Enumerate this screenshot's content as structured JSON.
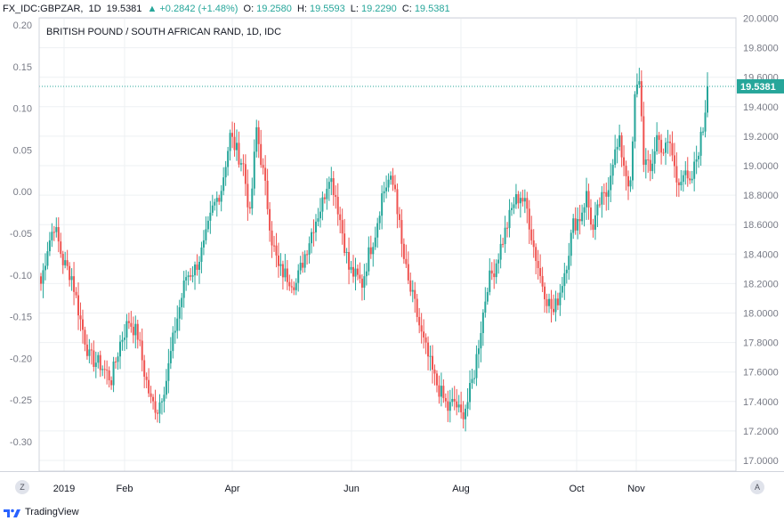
{
  "header": {
    "symbol": "FX_IDC:GBPZAR,",
    "interval": "1D",
    "last": "19.5381",
    "change_icon": "triangle-up-icon",
    "change": "+0.2842 (+1.48%)",
    "open_label": "O:",
    "open": "19.2580",
    "high_label": "H:",
    "high": "19.5593",
    "low_label": "L:",
    "low": "19.2290",
    "close_label": "C:",
    "close": "19.5381"
  },
  "colors": {
    "up": "#26a69a",
    "down": "#ef5350",
    "grid": "#eef0f3",
    "axis": "#787b86",
    "price_line": "#26a69a"
  },
  "footer": {
    "brand": "TradingView",
    "brand_icon": "tradingview-logo-icon",
    "left_button": "Z",
    "right_button": "A"
  },
  "chart_data": {
    "type": "candlestick",
    "title": "BRITISH POUND / SOUTH AFRICAN RAND, 1D, IDC",
    "x_tick_labels": [
      "2019",
      "Feb",
      "Apr",
      "Jun",
      "Aug",
      "Oct",
      "Nov"
    ],
    "left_axis": {
      "ticks": [
        "0.20",
        "0.15",
        "0.10",
        "0.05",
        "0.00",
        "-0.05",
        "-0.10",
        "-0.15",
        "-0.20",
        "-0.25",
        "-0.30"
      ]
    },
    "right_axis": {
      "ticks": [
        "20.0000",
        "19.8000",
        "19.6000",
        "19.4000",
        "19.2000",
        "19.0000",
        "18.8000",
        "18.6000",
        "18.4000",
        "18.2000",
        "18.0000",
        "17.8000",
        "17.6000",
        "17.4000",
        "17.2000",
        "17.0000"
      ],
      "ylim": [
        17.0,
        20.0
      ]
    },
    "last_price": 19.5381,
    "last_price_label": "19.5381",
    "grid": true,
    "anchors": [
      [
        0,
        18.2
      ],
      [
        3,
        18.45
      ],
      [
        6,
        18.6
      ],
      [
        10,
        18.35
      ],
      [
        14,
        18.25
      ],
      [
        18,
        17.95
      ],
      [
        22,
        17.7
      ],
      [
        27,
        17.65
      ],
      [
        32,
        17.55
      ],
      [
        36,
        17.8
      ],
      [
        40,
        17.95
      ],
      [
        44,
        17.85
      ],
      [
        47,
        17.6
      ],
      [
        50,
        17.4
      ],
      [
        53,
        17.35
      ],
      [
        57,
        17.55
      ],
      [
        61,
        17.9
      ],
      [
        66,
        18.25
      ],
      [
        70,
        18.3
      ],
      [
        74,
        18.45
      ],
      [
        78,
        18.7
      ],
      [
        82,
        18.85
      ],
      [
        86,
        19.2
      ],
      [
        89,
        19.1
      ],
      [
        92,
        19.0
      ],
      [
        95,
        18.65
      ],
      [
        98,
        19.25
      ],
      [
        102,
        18.85
      ],
      [
        105,
        18.5
      ],
      [
        108,
        18.3
      ],
      [
        112,
        18.25
      ],
      [
        116,
        18.2
      ],
      [
        120,
        18.4
      ],
      [
        124,
        18.6
      ],
      [
        128,
        18.75
      ],
      [
        131,
        18.95
      ],
      [
        134,
        18.8
      ],
      [
        137,
        18.55
      ],
      [
        140,
        18.3
      ],
      [
        143,
        18.25
      ],
      [
        146,
        18.2
      ],
      [
        149,
        18.4
      ],
      [
        152,
        18.55
      ],
      [
        155,
        18.8
      ],
      [
        158,
        18.9
      ],
      [
        161,
        18.85
      ],
      [
        164,
        18.45
      ],
      [
        167,
        18.2
      ],
      [
        170,
        18.05
      ],
      [
        173,
        17.85
      ],
      [
        176,
        17.7
      ],
      [
        179,
        17.55
      ],
      [
        182,
        17.45
      ],
      [
        185,
        17.35
      ],
      [
        188,
        17.4
      ],
      [
        191,
        17.3
      ],
      [
        194,
        17.4
      ],
      [
        197,
        17.6
      ],
      [
        200,
        17.9
      ],
      [
        203,
        18.2
      ],
      [
        206,
        18.3
      ],
      [
        209,
        18.45
      ],
      [
        212,
        18.6
      ],
      [
        215,
        18.75
      ],
      [
        218,
        18.8
      ],
      [
        221,
        18.7
      ],
      [
        224,
        18.45
      ],
      [
        227,
        18.25
      ],
      [
        230,
        18.1
      ],
      [
        233,
        18.0
      ],
      [
        236,
        18.15
      ],
      [
        239,
        18.35
      ],
      [
        242,
        18.6
      ],
      [
        245,
        18.65
      ],
      [
        248,
        18.8
      ],
      [
        251,
        18.55
      ],
      [
        254,
        18.75
      ],
      [
        257,
        18.8
      ],
      [
        260,
        19.05
      ],
      [
        263,
        19.15
      ],
      [
        266,
        18.95
      ],
      [
        268,
        18.85
      ],
      [
        270,
        19.45
      ],
      [
        272,
        19.6
      ],
      [
        274,
        19.05
      ],
      [
        277,
        18.95
      ],
      [
        280,
        19.2
      ],
      [
        283,
        19.1
      ],
      [
        286,
        19.15
      ],
      [
        289,
        18.9
      ],
      [
        292,
        18.95
      ],
      [
        295,
        18.85
      ],
      [
        298,
        19.05
      ],
      [
        301,
        19.25
      ],
      [
        303,
        19.53
      ]
    ]
  }
}
